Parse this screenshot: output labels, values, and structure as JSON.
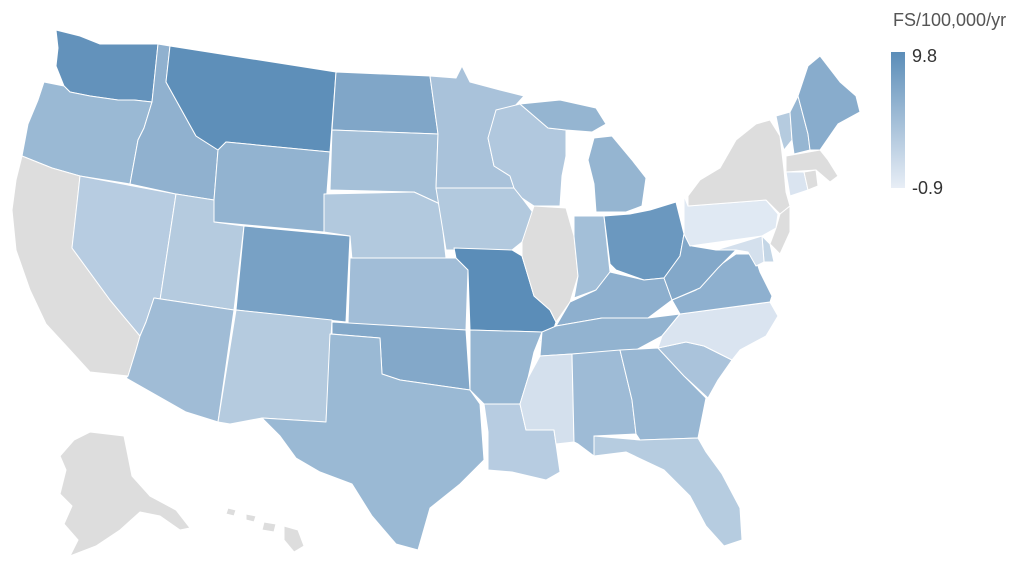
{
  "legend": {
    "title": "FS/100,000/yr",
    "max_label": "9.8",
    "min_label": "-0.9",
    "max_value": 9.8,
    "min_value": -0.9,
    "color_high": "#5b8db8",
    "color_low": "#e8eef6"
  },
  "no_data_color": "#dddddd",
  "states": [
    {
      "id": "WA",
      "value": 9.2
    },
    {
      "id": "OR",
      "value": 5.0
    },
    {
      "id": "CA",
      "value": null
    },
    {
      "id": "NV",
      "value": 2.8
    },
    {
      "id": "ID",
      "value": 5.8
    },
    {
      "id": "MT",
      "value": 9.6
    },
    {
      "id": "WY",
      "value": 5.6
    },
    {
      "id": "UT",
      "value": 3.0
    },
    {
      "id": "AZ",
      "value": 4.6
    },
    {
      "id": "CO",
      "value": 7.6
    },
    {
      "id": "NM",
      "value": 3.0
    },
    {
      "id": "ND",
      "value": 7.0
    },
    {
      "id": "SD",
      "value": 4.2
    },
    {
      "id": "NE",
      "value": 3.2
    },
    {
      "id": "KS",
      "value": 4.5
    },
    {
      "id": "OK",
      "value": 6.8
    },
    {
      "id": "TX",
      "value": 5.0
    },
    {
      "id": "MN",
      "value": 3.9
    },
    {
      "id": "IA",
      "value": 3.2
    },
    {
      "id": "MO",
      "value": 9.8
    },
    {
      "id": "AR",
      "value": 5.3
    },
    {
      "id": "LA",
      "value": 2.8
    },
    {
      "id": "WI",
      "value": 3.3
    },
    {
      "id": "IL",
      "value": null
    },
    {
      "id": "MI",
      "value": 5.4
    },
    {
      "id": "IN",
      "value": 4.3
    },
    {
      "id": "OH",
      "value": 8.6
    },
    {
      "id": "KY",
      "value": 6.0
    },
    {
      "id": "TN",
      "value": 5.6
    },
    {
      "id": "MS",
      "value": 0.6
    },
    {
      "id": "AL",
      "value": 4.7
    },
    {
      "id": "GA",
      "value": 5.2
    },
    {
      "id": "FL",
      "value": 2.9
    },
    {
      "id": "SC",
      "value": 3.8
    },
    {
      "id": "NC",
      "value": 0.2
    },
    {
      "id": "VA",
      "value": 5.9
    },
    {
      "id": "WV",
      "value": 6.8
    },
    {
      "id": "PA",
      "value": -0.3
    },
    {
      "id": "NY",
      "value": null
    },
    {
      "id": "VT",
      "value": 3.0
    },
    {
      "id": "NH",
      "value": 5.3
    },
    {
      "id": "ME",
      "value": 6.4
    },
    {
      "id": "MA",
      "value": null
    },
    {
      "id": "CT",
      "value": 0.2
    },
    {
      "id": "RI",
      "value": null
    },
    {
      "id": "NJ",
      "value": null
    },
    {
      "id": "DE",
      "value": 1.8
    },
    {
      "id": "MD",
      "value": 0.6
    },
    {
      "id": "AK",
      "value": null
    },
    {
      "id": "HI",
      "value": null
    }
  ]
}
